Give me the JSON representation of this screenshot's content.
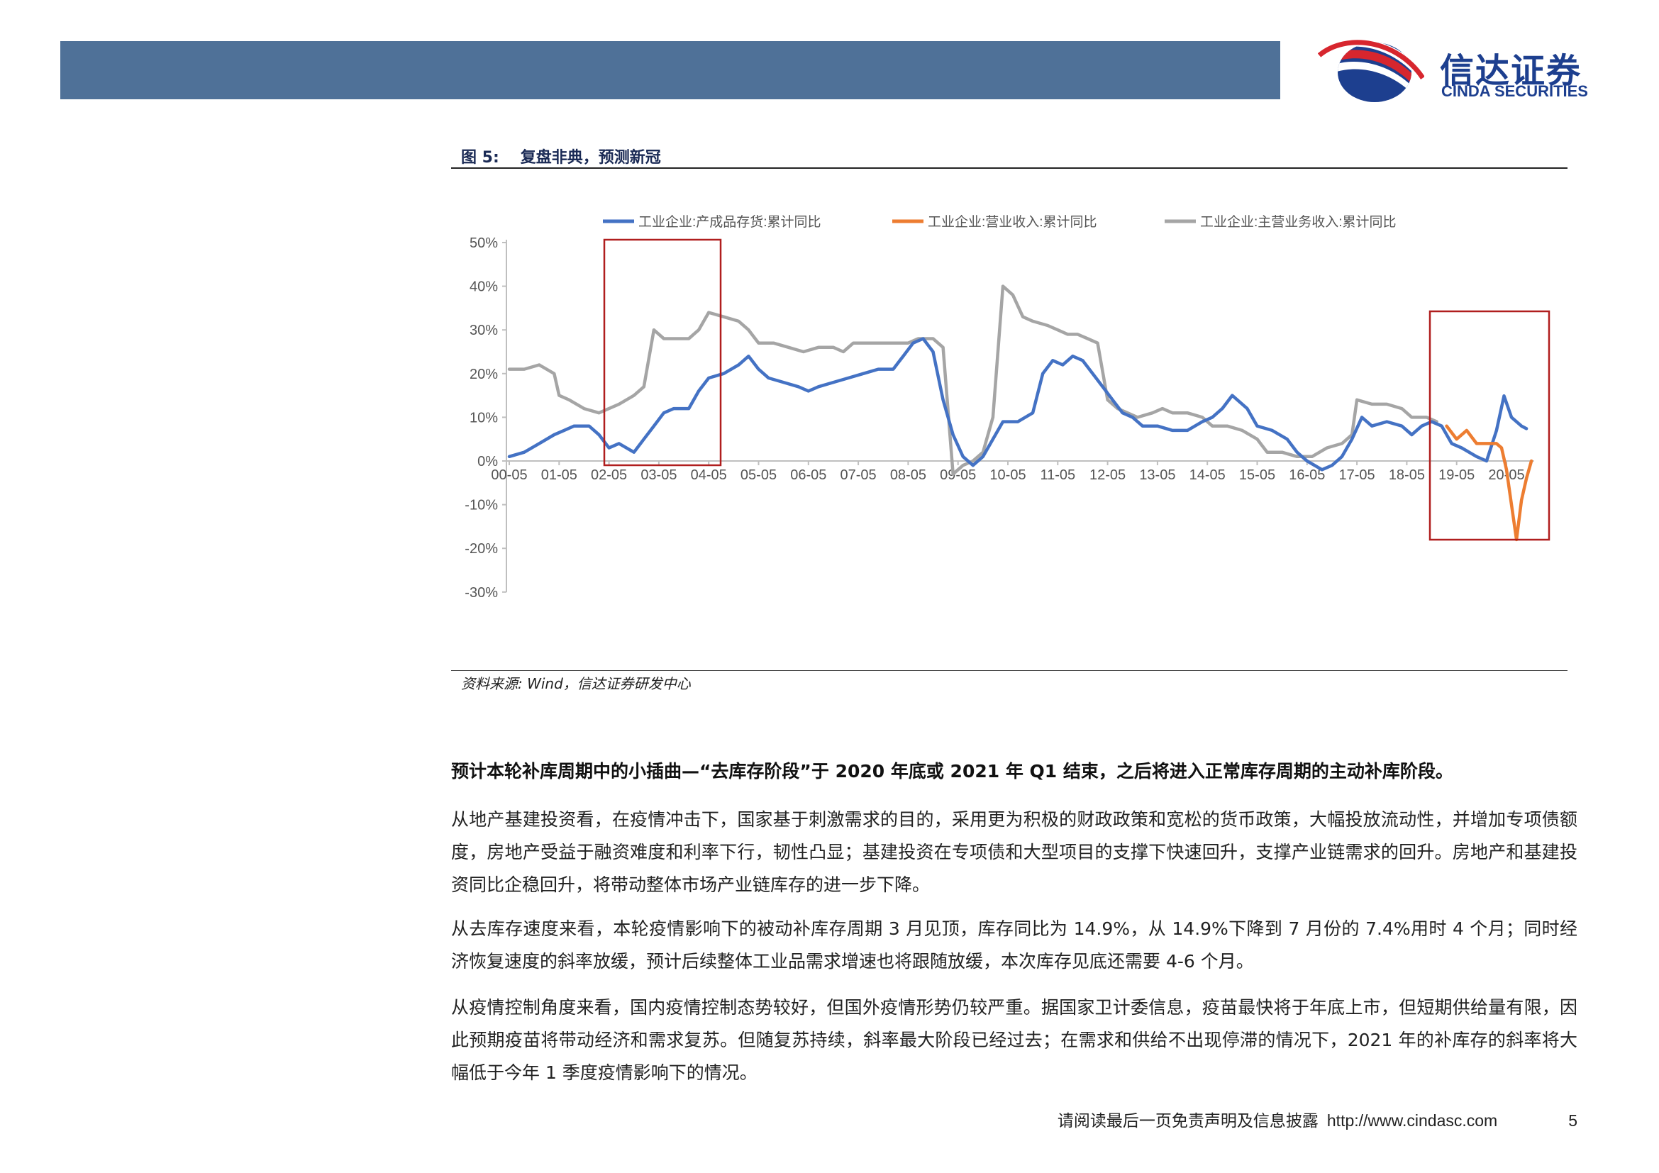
{
  "header": {
    "logo_cn": "信达证券",
    "logo_en": "CINDA SECURITIES",
    "logo_colors": {
      "red": "#d7262e",
      "blue": "#1d3f8f"
    }
  },
  "figure": {
    "number": "图 5:",
    "title": "复盘非典，预测新冠",
    "source": "资料来源: Wind，信达证券研发中心"
  },
  "chart_data": {
    "type": "line",
    "x_ticks": [
      "00-05",
      "01-05",
      "02-05",
      "03-05",
      "04-05",
      "05-05",
      "06-05",
      "07-05",
      "08-05",
      "09-05",
      "10-05",
      "11-05",
      "12-05",
      "13-05",
      "14-05",
      "15-05",
      "16-05",
      "17-05",
      "18-05",
      "19-05",
      "20-05"
    ],
    "y_ticks": [
      "50%",
      "40%",
      "30%",
      "20%",
      "10%",
      "0%",
      "-10%",
      "-20%",
      "-30%"
    ],
    "ylim": [
      -30,
      50
    ],
    "legend_position": "top",
    "grid": false,
    "series": [
      {
        "name": "工业企业:产成品存货:累计同比",
        "color": "#4472c4",
        "points": [
          [
            0,
            1
          ],
          [
            0.3,
            2
          ],
          [
            0.6,
            4
          ],
          [
            0.9,
            6
          ],
          [
            1.1,
            7
          ],
          [
            1.3,
            8
          ],
          [
            1.6,
            8
          ],
          [
            1.8,
            6
          ],
          [
            2.0,
            3
          ],
          [
            2.2,
            4
          ],
          [
            2.5,
            2
          ],
          [
            2.7,
            5
          ],
          [
            2.9,
            8
          ],
          [
            3.1,
            11
          ],
          [
            3.3,
            12
          ],
          [
            3.6,
            12
          ],
          [
            3.8,
            16
          ],
          [
            4.0,
            19
          ],
          [
            4.3,
            20
          ],
          [
            4.6,
            22
          ],
          [
            4.8,
            24
          ],
          [
            5.0,
            21
          ],
          [
            5.2,
            19
          ],
          [
            5.5,
            18
          ],
          [
            5.8,
            17
          ],
          [
            6.0,
            16
          ],
          [
            6.2,
            17
          ],
          [
            6.5,
            18
          ],
          [
            6.8,
            19
          ],
          [
            7.1,
            20
          ],
          [
            7.4,
            21
          ],
          [
            7.7,
            21
          ],
          [
            7.9,
            24
          ],
          [
            8.1,
            27
          ],
          [
            8.3,
            28
          ],
          [
            8.5,
            25
          ],
          [
            8.7,
            14
          ],
          [
            8.9,
            6
          ],
          [
            9.1,
            1
          ],
          [
            9.3,
            -1
          ],
          [
            9.5,
            1
          ],
          [
            9.7,
            5
          ],
          [
            9.9,
            9
          ],
          [
            10.2,
            9
          ],
          [
            10.5,
            11
          ],
          [
            10.7,
            20
          ],
          [
            10.9,
            23
          ],
          [
            11.1,
            22
          ],
          [
            11.3,
            24
          ],
          [
            11.5,
            23
          ],
          [
            11.7,
            20
          ],
          [
            11.9,
            17
          ],
          [
            12.1,
            14
          ],
          [
            12.3,
            11
          ],
          [
            12.5,
            10
          ],
          [
            12.7,
            8
          ],
          [
            13.0,
            8
          ],
          [
            13.3,
            7
          ],
          [
            13.6,
            7
          ],
          [
            13.9,
            9
          ],
          [
            14.1,
            10
          ],
          [
            14.3,
            12
          ],
          [
            14.5,
            15
          ],
          [
            14.8,
            12
          ],
          [
            15.0,
            8
          ],
          [
            15.3,
            7
          ],
          [
            15.6,
            5
          ],
          [
            15.8,
            2
          ],
          [
            16.0,
            0
          ],
          [
            16.3,
            -2
          ],
          [
            16.5,
            -1
          ],
          [
            16.7,
            1
          ],
          [
            16.9,
            5
          ],
          [
            17.1,
            10
          ],
          [
            17.3,
            8
          ],
          [
            17.6,
            9
          ],
          [
            17.9,
            8
          ],
          [
            18.1,
            6
          ],
          [
            18.3,
            8
          ],
          [
            18.5,
            9
          ],
          [
            18.7,
            8
          ],
          [
            18.9,
            4
          ],
          [
            19.1,
            3
          ],
          [
            19.4,
            1
          ],
          [
            19.6,
            0
          ],
          [
            19.8,
            7
          ],
          [
            19.95,
            14.9
          ],
          [
            20.1,
            10
          ],
          [
            20.3,
            8
          ],
          [
            20.4,
            7.4
          ]
        ]
      },
      {
        "name": "工业企业:营业收入:累计同比",
        "color": "#ed7d31",
        "points": [
          [
            18.8,
            8
          ],
          [
            19.0,
            5
          ],
          [
            19.2,
            7
          ],
          [
            19.4,
            4
          ],
          [
            19.6,
            4
          ],
          [
            19.8,
            4
          ],
          [
            19.9,
            3
          ],
          [
            20.0,
            -2
          ],
          [
            20.1,
            -10
          ],
          [
            20.2,
            -18
          ],
          [
            20.3,
            -9
          ],
          [
            20.4,
            -4
          ],
          [
            20.5,
            0
          ]
        ]
      },
      {
        "name": "工业企业:主营业务收入:累计同比",
        "color": "#a5a5a5",
        "points": [
          [
            0,
            21
          ],
          [
            0.3,
            21
          ],
          [
            0.6,
            22
          ],
          [
            0.9,
            20
          ],
          [
            1.0,
            15
          ],
          [
            1.2,
            14
          ],
          [
            1.5,
            12
          ],
          [
            1.8,
            11
          ],
          [
            2.0,
            12
          ],
          [
            2.2,
            13
          ],
          [
            2.5,
            15
          ],
          [
            2.7,
            17
          ],
          [
            2.9,
            30
          ],
          [
            3.1,
            28
          ],
          [
            3.4,
            28
          ],
          [
            3.6,
            28
          ],
          [
            3.8,
            30
          ],
          [
            4.0,
            34
          ],
          [
            4.3,
            33
          ],
          [
            4.6,
            32
          ],
          [
            4.8,
            30
          ],
          [
            5.0,
            27
          ],
          [
            5.3,
            27
          ],
          [
            5.6,
            26
          ],
          [
            5.9,
            25
          ],
          [
            6.2,
            26
          ],
          [
            6.5,
            26
          ],
          [
            6.7,
            25
          ],
          [
            6.9,
            27
          ],
          [
            7.2,
            27
          ],
          [
            7.5,
            27
          ],
          [
            7.8,
            27
          ],
          [
            8.0,
            27
          ],
          [
            8.2,
            28
          ],
          [
            8.5,
            28
          ],
          [
            8.7,
            26
          ],
          [
            8.9,
            -3
          ],
          [
            9.1,
            -1
          ],
          [
            9.3,
            0
          ],
          [
            9.5,
            2
          ],
          [
            9.7,
            10
          ],
          [
            9.9,
            40
          ],
          [
            10.1,
            38
          ],
          [
            10.3,
            33
          ],
          [
            10.5,
            32
          ],
          [
            10.8,
            31
          ],
          [
            11.0,
            30
          ],
          [
            11.2,
            29
          ],
          [
            11.4,
            29
          ],
          [
            11.6,
            28
          ],
          [
            11.8,
            27
          ],
          [
            12.0,
            14
          ],
          [
            12.2,
            12
          ],
          [
            12.4,
            11
          ],
          [
            12.6,
            10
          ],
          [
            12.9,
            11
          ],
          [
            13.1,
            12
          ],
          [
            13.3,
            11
          ],
          [
            13.6,
            11
          ],
          [
            13.9,
            10
          ],
          [
            14.1,
            8
          ],
          [
            14.4,
            8
          ],
          [
            14.7,
            7
          ],
          [
            15.0,
            5
          ],
          [
            15.2,
            2
          ],
          [
            15.5,
            2
          ],
          [
            15.8,
            1
          ],
          [
            16.1,
            1
          ],
          [
            16.4,
            3
          ],
          [
            16.7,
            4
          ],
          [
            16.9,
            6
          ],
          [
            17.0,
            14
          ],
          [
            17.3,
            13
          ],
          [
            17.6,
            13
          ],
          [
            17.9,
            12
          ],
          [
            18.1,
            10
          ],
          [
            18.4,
            10
          ],
          [
            18.6,
            9
          ]
        ]
      }
    ]
  },
  "lead": "预计本轮补库周期中的小插曲—“去库存阶段”于 2020 年底或 2021 年 Q1 结束，之后将进入正常库存周期的主动补库阶段。",
  "paragraphs": [
    "从地产基建投资看，在疫情冲击下，国家基于刺激需求的目的，采用更为积极的财政政策和宽松的货币政策，大幅投放流动性，并增加专项债额度，房地产受益于融资难度和利率下行，韧性凸显；基建投资在专项债和大型项目的支撑下快速回升，支撑产业链需求的回升。房地产和基建投资同比企稳回升，将带动整体市场产业链库存的进一步下降。",
    "从去库存速度来看，本轮疫情影响下的被动补库存周期 3 月见顶，库存同比为 14.9%，从 14.9%下降到 7 月份的 7.4%用时 4 个月；同时经济恢复速度的斜率放缓，预计后续整体工业品需求增速也将跟随放缓，本次库存见底还需要 4-6 个月。",
    "从疫情控制角度来看，国内疫情控制态势较好，但国外疫情形势仍较严重。据国家卫计委信息，疫苗最快将于年底上市，但短期供给量有限，因此预期疫苗将带动经济和需求复苏。但随复苏持续，斜率最大阶段已经过去；在需求和供给不出现停滞的情况下，2021 年的补库存的斜率将大幅低于今年 1 季度疫情影响下的情况。"
  ],
  "footer": {
    "disclaimer": "请阅读最后一页免责声明及信息披露",
    "url": "http://www.cindasc.com",
    "page": "5"
  }
}
